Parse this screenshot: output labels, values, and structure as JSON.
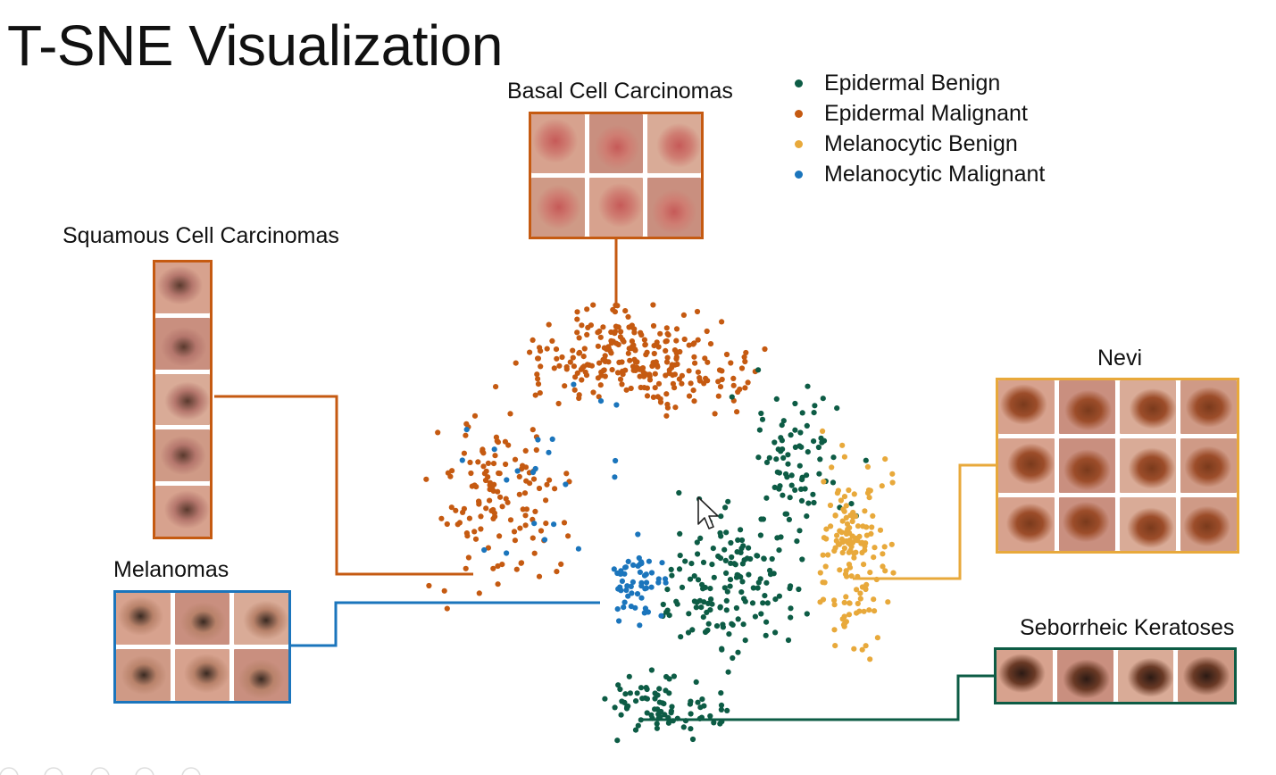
{
  "chart_data": {
    "type": "scatter",
    "title": "T-SNE Visualization",
    "xlabel": "",
    "ylabel": "",
    "grid": false,
    "legend_position": "top-right",
    "series": [
      {
        "name": "Epidermal Benign",
        "color": "#0d5c45"
      },
      {
        "name": "Epidermal Malignant",
        "color": "#c55a11"
      },
      {
        "name": "Melanocytic Benign",
        "color": "#e8a93b"
      },
      {
        "name": "Melanocytic Malignant",
        "color": "#1b75bc"
      }
    ],
    "annotations": [
      {
        "label": "Basal Cell Carcinomas",
        "series": "Epidermal Malignant",
        "border_color": "#c55a11",
        "images": 6
      },
      {
        "label": "Squamous Cell Carcinomas",
        "series": "Epidermal Malignant",
        "border_color": "#c55a11",
        "images": 5
      },
      {
        "label": "Melanomas",
        "series": "Melanocytic Malignant",
        "border_color": "#1b75bc",
        "images": 6
      },
      {
        "label": "Nevi",
        "series": "Melanocytic Benign",
        "border_color": "#e8a93b",
        "images": 12
      },
      {
        "label": "Seborrheic Keratoses",
        "series": "Epidermal Benign",
        "border_color": "#0d5c45",
        "images": 4
      }
    ]
  },
  "cursor_icon": "arrow-cursor-icon",
  "toolbar_icon": "slideshow-toolbar-icon"
}
